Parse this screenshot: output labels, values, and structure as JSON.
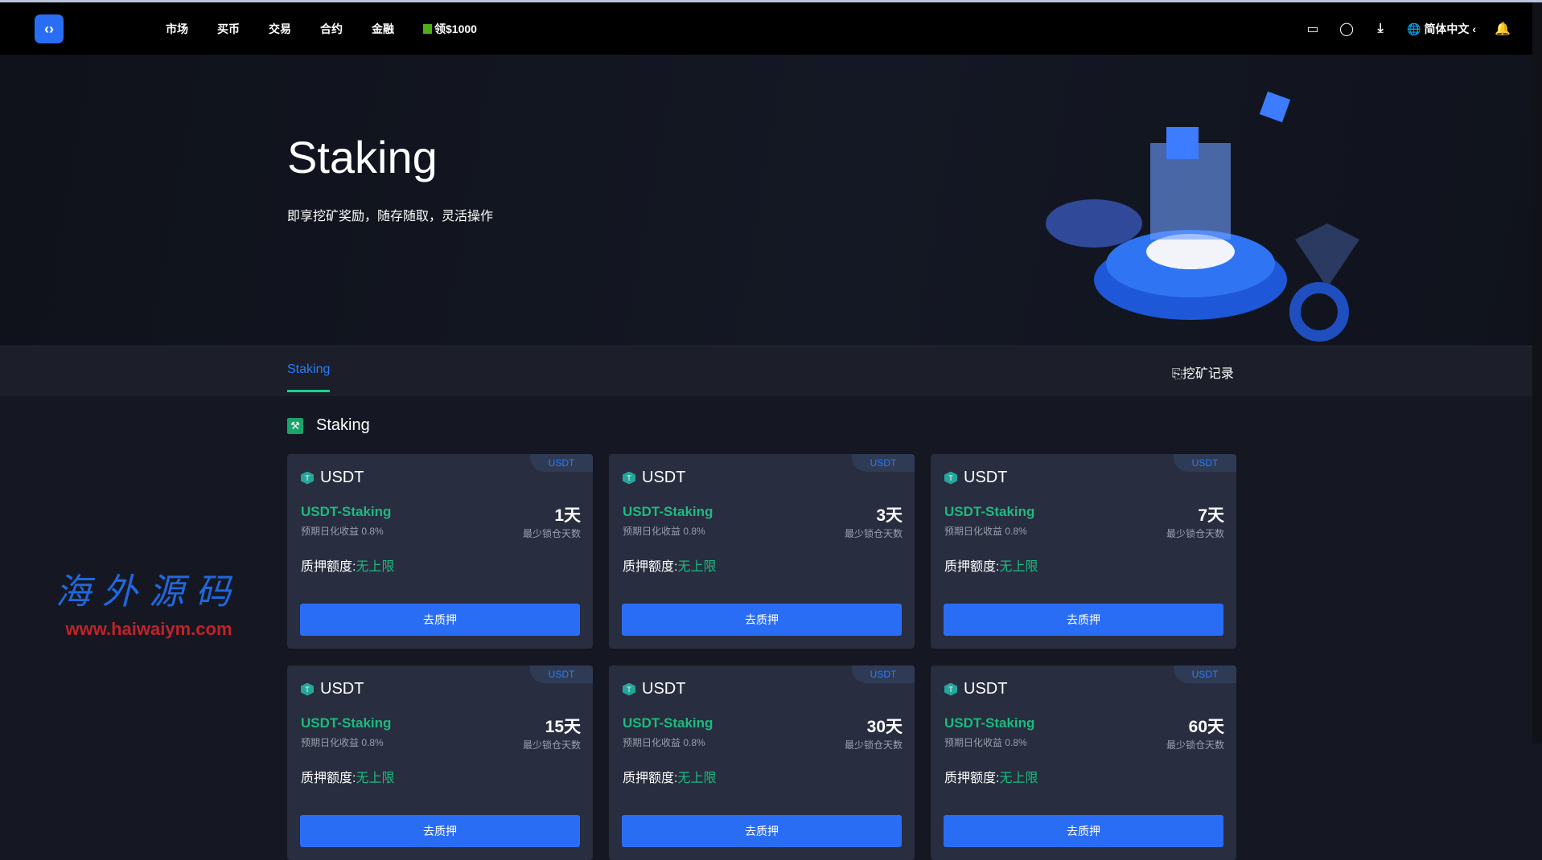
{
  "header": {
    "nav": [
      "市场",
      "买币",
      "交易",
      "合约",
      "金融"
    ],
    "promo": "领$1000",
    "language": "简体中文"
  },
  "hero": {
    "title": "Staking",
    "subtitle": "即享挖矿奖励，随存随取，灵活操作"
  },
  "tabs": {
    "active": "Staking",
    "record": "挖矿记录"
  },
  "section": {
    "title": "Staking"
  },
  "cards": [
    {
      "badge": "USDT",
      "coin": "USDT",
      "product": "USDT-Staking",
      "rate": "预期日化收益 0.8%",
      "days": "1天",
      "days_label": "最少锁仓天数",
      "limit_label": "质押额度:",
      "limit_value": "无上限",
      "button": "去质押"
    },
    {
      "badge": "USDT",
      "coin": "USDT",
      "product": "USDT-Staking",
      "rate": "预期日化收益 0.8%",
      "days": "3天",
      "days_label": "最少锁仓天数",
      "limit_label": "质押额度:",
      "limit_value": "无上限",
      "button": "去质押"
    },
    {
      "badge": "USDT",
      "coin": "USDT",
      "product": "USDT-Staking",
      "rate": "预期日化收益 0.8%",
      "days": "7天",
      "days_label": "最少锁仓天数",
      "limit_label": "质押额度:",
      "limit_value": "无上限",
      "button": "去质押"
    },
    {
      "badge": "USDT",
      "coin": "USDT",
      "product": "USDT-Staking",
      "rate": "预期日化收益 0.8%",
      "days": "15天",
      "days_label": "最少锁仓天数",
      "limit_label": "质押额度:",
      "limit_value": "无上限",
      "button": "去质押"
    },
    {
      "badge": "USDT",
      "coin": "USDT",
      "product": "USDT-Staking",
      "rate": "预期日化收益 0.8%",
      "days": "30天",
      "days_label": "最少锁仓天数",
      "limit_label": "质押额度:",
      "limit_value": "无上限",
      "button": "去质押"
    },
    {
      "badge": "USDT",
      "coin": "USDT",
      "product": "USDT-Staking",
      "rate": "预期日化收益 0.8%",
      "days": "60天",
      "days_label": "最少锁仓天数",
      "limit_label": "质押额度:",
      "limit_value": "无上限",
      "button": "去质押"
    }
  ],
  "watermark": {
    "text": "海外源码",
    "url": "www.haiwaiym.com"
  },
  "colors": {
    "accent": "#2a6df5",
    "green": "#1dba7f"
  }
}
